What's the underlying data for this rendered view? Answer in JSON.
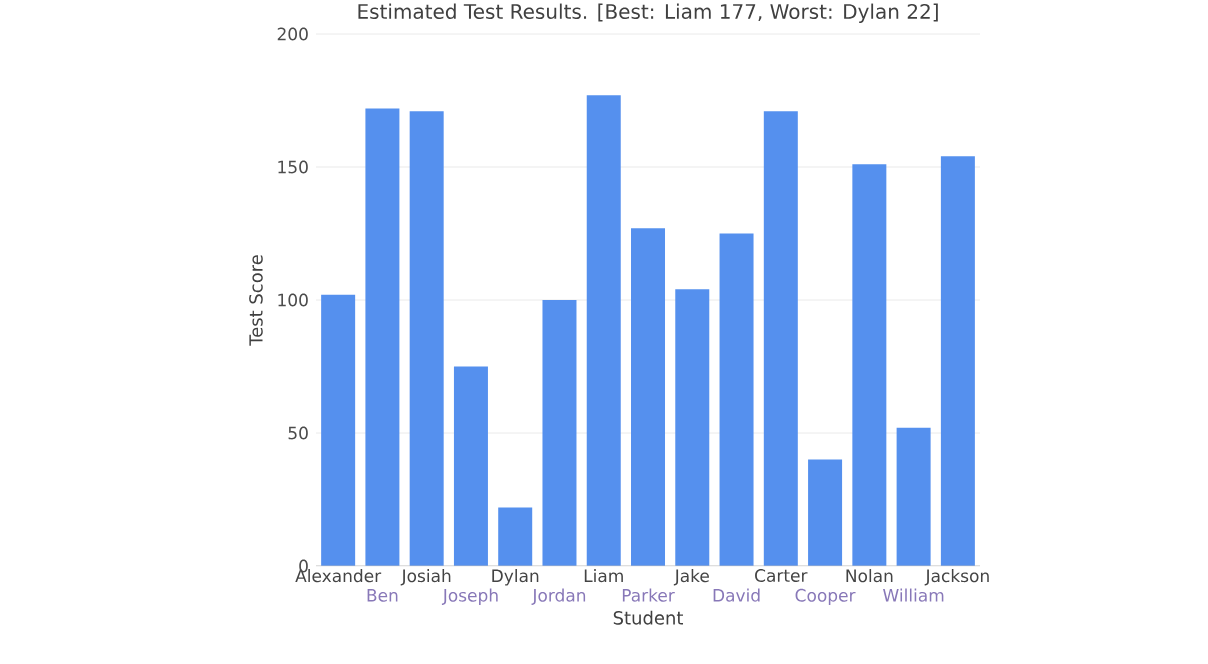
{
  "chart_data": {
    "type": "bar",
    "title": "Estimated Test Results. [Best: Liam 177, Worst: Dylan 22]",
    "xlabel": "Student",
    "ylabel": "Test Score",
    "categories": [
      "Alexander",
      "Ben",
      "Josiah",
      "Joseph",
      "Dylan",
      "Jordan",
      "Liam",
      "Parker",
      "Jake",
      "David",
      "Carter",
      "Cooper",
      "Nolan",
      "William",
      "Jackson"
    ],
    "values": [
      102,
      172,
      171,
      75,
      22,
      100,
      177,
      127,
      104,
      125,
      171,
      40,
      151,
      52,
      154
    ],
    "color": "#5590ee",
    "ylim": [
      0,
      200
    ],
    "yticks": [
      0,
      50,
      100,
      150,
      200
    ],
    "grid": "y"
  }
}
